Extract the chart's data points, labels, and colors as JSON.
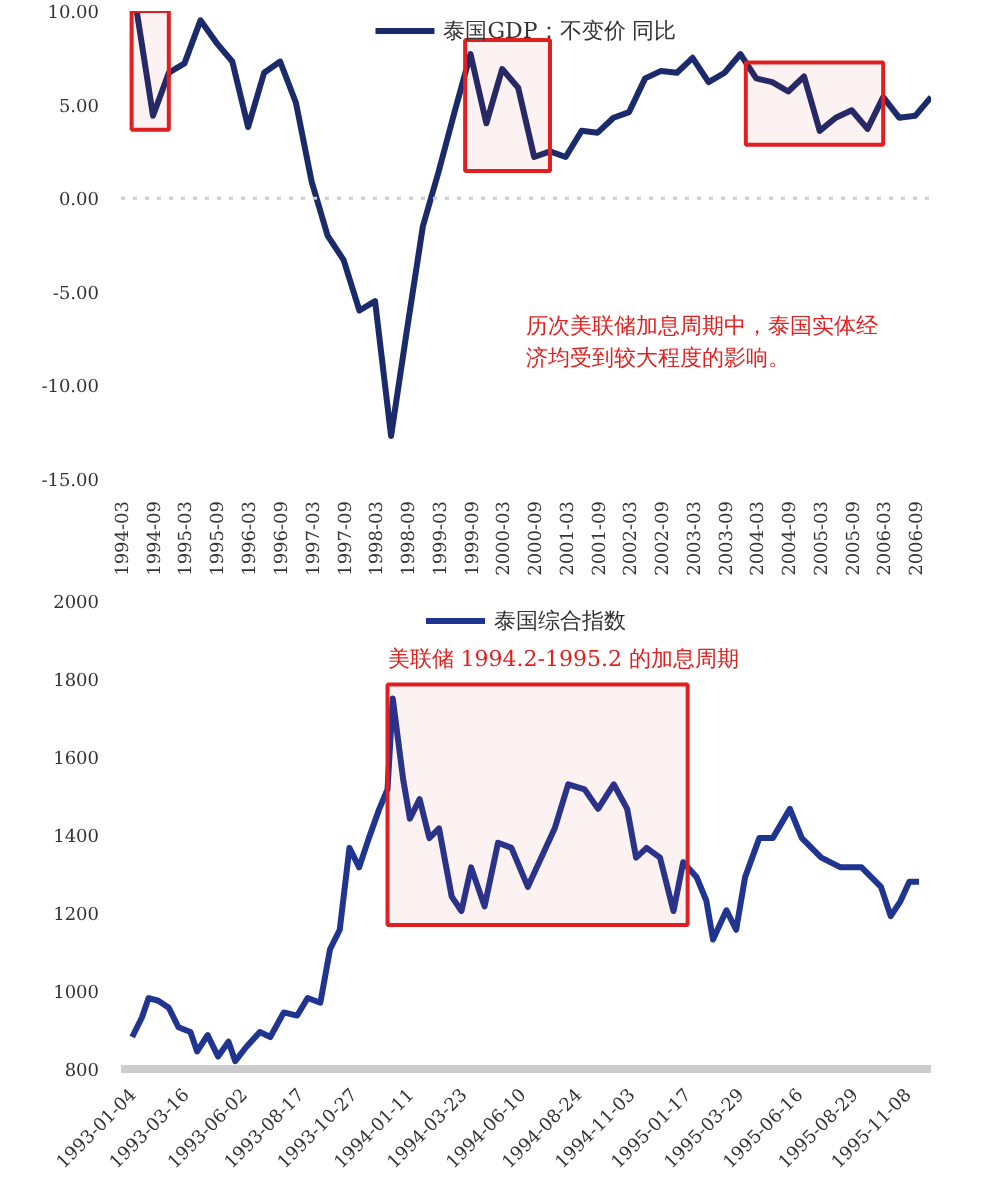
{
  "chart_data": [
    {
      "type": "line",
      "legend": "top",
      "grid": false,
      "line_style": "solid",
      "marker": "none",
      "x": [
        "1994-06",
        "1994-09",
        "1994-12",
        "1995-03",
        "1995-06",
        "1995-09",
        "1995-12",
        "1996-03",
        "1996-06",
        "1996-09",
        "1996-12",
        "1997-03",
        "1997-06",
        "1997-09",
        "1997-12",
        "1998-03",
        "1998-06",
        "1998-09",
        "1998-12",
        "1999-03",
        "1999-06",
        "1999-09",
        "1999-12",
        "2000-03",
        "2000-06",
        "2000-09",
        "2000-12",
        "2001-03",
        "2001-06",
        "2001-09",
        "2001-12",
        "2002-03",
        "2002-06",
        "2002-09",
        "2002-12",
        "2003-03",
        "2003-06",
        "2003-09",
        "2003-12",
        "2004-03",
        "2004-06",
        "2004-09",
        "2004-12",
        "2005-03",
        "2005-06",
        "2005-09",
        "2005-12",
        "2006-03",
        "2006-06",
        "2006-09",
        "2006-12"
      ],
      "series": [
        {
          "name": "泰国GDP：不变价 同比",
          "color": "#1b2a6b",
          "values": [
            9.9,
            4.4,
            6.7,
            7.2,
            9.5,
            8.3,
            7.3,
            3.8,
            6.7,
            7.3,
            5.1,
            0.9,
            -2.0,
            -3.3,
            -6.0,
            -5.5,
            -12.7,
            -7.0,
            -1.5,
            1.4,
            4.6,
            7.7,
            4.0,
            6.9,
            5.9,
            2.2,
            2.5,
            2.2,
            3.6,
            3.5,
            4.3,
            4.6,
            6.4,
            6.8,
            6.7,
            7.5,
            6.2,
            6.7,
            7.7,
            6.4,
            6.2,
            5.7,
            6.5,
            3.6,
            4.3,
            4.7,
            3.7,
            5.4,
            4.3,
            4.4,
            5.4
          ]
        }
      ],
      "ylim": [
        -15,
        10
      ],
      "yticks": [
        {
          "value": -15,
          "label": "-15.00"
        },
        {
          "value": -10,
          "label": "-10.00"
        },
        {
          "value": -5,
          "label": "-5.00"
        },
        {
          "value": 0,
          "label": "0.00"
        },
        {
          "value": 5,
          "label": "5.00"
        },
        {
          "value": 10,
          "label": "10.00"
        }
      ],
      "xlim": [
        "1994-03",
        "2006-12"
      ],
      "xticks": [
        "1994-03",
        "1994-09",
        "1995-03",
        "1995-09",
        "1996-03",
        "1996-09",
        "1997-03",
        "1997-09",
        "1998-03",
        "1998-09",
        "1999-03",
        "1999-09",
        "2000-03",
        "2000-09",
        "2001-03",
        "2001-09",
        "2002-03",
        "2002-09",
        "2003-03",
        "2003-09",
        "2004-03",
        "2004-09",
        "2005-03",
        "2005-09",
        "2006-03",
        "2006-09"
      ],
      "ref_lines": [
        {
          "axis": "y",
          "value": 0,
          "color": "#cccccc",
          "line_style": "dotted"
        }
      ],
      "bands": [
        {
          "axis": "x",
          "from": "1994-05",
          "to": "1994-12",
          "color": "#e02020"
        },
        {
          "axis": "x",
          "from": "1999-08",
          "to": "2000-12",
          "color": "#e02020"
        },
        {
          "axis": "x",
          "from": "2004-01",
          "to": "2006-03",
          "color": "#e02020"
        }
      ],
      "annotations": [
        "历次美联储加息周期中，泰国实体经济均受到较大程度的影响。"
      ]
    },
    {
      "type": "line",
      "legend": "top",
      "grid": false,
      "line_style": "solid",
      "marker": "none",
      "x": [
        "1993-01-04",
        "1993-01-17",
        "1993-01-26",
        "1993-02-08",
        "1993-02-22",
        "1993-03-07",
        "1993-03-23",
        "1993-04-01",
        "1993-04-15",
        "1993-04-29",
        "1993-05-13",
        "1993-05-22",
        "1993-06-06",
        "1993-06-24",
        "1993-07-08",
        "1993-07-26",
        "1993-08-13",
        "1993-08-27",
        "1993-09-13",
        "1993-09-26",
        "1993-10-09",
        "1993-10-22",
        "1993-11-04",
        "1993-11-17",
        "1993-12-01",
        "1993-12-12",
        "1993-12-19",
        "1994-01-02",
        "1994-01-11",
        "1994-01-24",
        "1994-02-06",
        "1994-02-19",
        "1994-03-08",
        "1994-03-21",
        "1994-04-03",
        "1994-04-21",
        "1994-05-09",
        "1994-05-27",
        "1994-06-18",
        "1994-07-06",
        "1994-07-24",
        "1994-08-11",
        "1994-09-02",
        "1994-09-20",
        "1994-10-11",
        "1994-10-29",
        "1994-11-10",
        "1994-11-24",
        "1994-12-12",
        "1994-12-30",
        "1995-01-12",
        "1995-01-30",
        "1995-02-12",
        "1995-02-21",
        "1995-03-11",
        "1995-03-24",
        "1995-04-05",
        "1995-04-24",
        "1995-05-12",
        "1995-06-04",
        "1995-06-20",
        "1995-07-16",
        "1995-08-11",
        "1995-09-08",
        "1995-10-04",
        "1995-10-17",
        "1995-10-30",
        "1995-11-11",
        "1995-11-24"
      ],
      "series": [
        {
          "name": "泰国综合指数",
          "color": "#1f3590",
          "values": [
            882,
            932,
            982,
            975,
            957,
            907,
            895,
            845,
            887,
            832,
            870,
            820,
            857,
            895,
            882,
            945,
            937,
            982,
            970,
            1107,
            1157,
            1367,
            1317,
            1392,
            1467,
            1517,
            1750,
            1542,
            1442,
            1492,
            1392,
            1417,
            1242,
            1205,
            1317,
            1217,
            1380,
            1367,
            1267,
            1342,
            1417,
            1530,
            1517,
            1467,
            1530,
            1467,
            1342,
            1367,
            1342,
            1205,
            1330,
            1292,
            1232,
            1132,
            1207,
            1157,
            1292,
            1392,
            1392,
            1467,
            1392,
            1342,
            1317,
            1317,
            1267,
            1192,
            1230,
            1280,
            1280
          ]
        }
      ],
      "ylim": [
        800,
        2000
      ],
      "yticks": [
        800,
        1000,
        1200,
        1400,
        1600,
        1800,
        2000
      ],
      "xlim": [
        "1992-12-20",
        "1995-12-10"
      ],
      "xticks": [
        "1993-01-04",
        "1993-03-16",
        "1993-06-02",
        "1993-08-17",
        "1993-10-27",
        "1994-01-11",
        "1994-03-23",
        "1994-06-10",
        "1994-08-24",
        "1994-11-03",
        "1995-01-17",
        "1995-03-29",
        "1995-06-16",
        "1995-08-29",
        "1995-11-08"
      ],
      "bands": [
        {
          "axis": "x",
          "from": "1993-12-12",
          "to": "1995-01-18",
          "color": "#e02020",
          "label": "美联储 1994.2-1995.2 的加息周期"
        }
      ]
    }
  ]
}
